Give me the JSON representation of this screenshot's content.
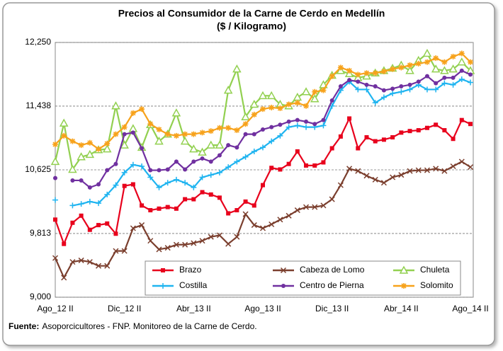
{
  "chart_data": {
    "type": "line",
    "title": "Precios al Consumidor de la Carne de Cerdo en Medellín",
    "subtitle": "($ / Kilogramo)",
    "categories": [
      "Ago_12 II",
      null,
      null,
      null,
      null,
      null,
      null,
      null,
      "Dic_12 II",
      null,
      null,
      null,
      null,
      null,
      null,
      null,
      "Abr_13 II",
      null,
      null,
      null,
      null,
      null,
      null,
      null,
      "Ago_13 II",
      null,
      null,
      null,
      null,
      null,
      null,
      null,
      "Dic_13 II",
      null,
      null,
      null,
      null,
      null,
      null,
      null,
      "Abr_14 II",
      null,
      null,
      null,
      null,
      null,
      null,
      null,
      "Ago_14 II"
    ],
    "ylim": [
      9000,
      12250
    ],
    "yticks": [
      {
        "value": 9000,
        "label": "9,000"
      },
      {
        "value": 9813,
        "label": "9,813"
      },
      {
        "value": 10625,
        "label": "10,625"
      },
      {
        "value": 11438,
        "label": "11,438"
      },
      {
        "value": 12250,
        "label": "12,250"
      }
    ],
    "grid": true,
    "legend": "bottom",
    "series": [
      {
        "name": "Brazo",
        "color": "#e8001c",
        "marker": "square",
        "values": [
          9990,
          9680,
          9950,
          10040,
          9860,
          9920,
          9940,
          9810,
          10420,
          10440,
          10170,
          10110,
          10130,
          10150,
          10130,
          10250,
          10250,
          10340,
          10310,
          10270,
          10070,
          10110,
          10220,
          10170,
          10430,
          10650,
          10630,
          10700,
          10860,
          10680,
          10680,
          10720,
          10900,
          11050,
          11280,
          10900,
          11040,
          10990,
          11010,
          11040,
          11100,
          11120,
          11130,
          11160,
          11200,
          11130,
          11020,
          11260,
          11210
        ]
      },
      {
        "name": "Cabeza de Lomo",
        "color": "#7b3f2e",
        "marker": "x",
        "values": [
          9500,
          9250,
          9450,
          9470,
          9450,
          9400,
          9400,
          9590,
          9590,
          9880,
          9920,
          9720,
          9610,
          9630,
          9670,
          9670,
          9690,
          9720,
          9770,
          9790,
          9680,
          9770,
          10060,
          9920,
          9880,
          9930,
          9990,
          10040,
          10110,
          10150,
          10150,
          10170,
          10250,
          10430,
          10640,
          10610,
          10550,
          10500,
          10460,
          10530,
          10560,
          10610,
          10620,
          10620,
          10640,
          10610,
          10670,
          10730,
          10660
        ]
      },
      {
        "name": "Chuleta",
        "color": "#92d050",
        "marker": "triangle",
        "values": [
          10730,
          11220,
          10630,
          10790,
          10820,
          10880,
          10890,
          11440,
          10940,
          11150,
          10910,
          11200,
          10990,
          11080,
          11350,
          10990,
          10890,
          10850,
          10940,
          10940,
          11640,
          11910,
          11300,
          11460,
          11570,
          11570,
          11460,
          11440,
          11550,
          11620,
          11530,
          11710,
          11830,
          11890,
          11850,
          11800,
          11820,
          11860,
          11890,
          11920,
          11960,
          11890,
          12020,
          12110,
          11910,
          11890,
          11910,
          12000,
          11890
        ]
      },
      {
        "name": "Costilla",
        "color": "#1fb4f0",
        "marker": "plus",
        "values": [
          10240,
          null,
          10170,
          10190,
          10220,
          10200,
          10310,
          10430,
          10590,
          10690,
          10670,
          10530,
          10400,
          10460,
          10500,
          10460,
          10400,
          10530,
          10560,
          10590,
          10660,
          10730,
          10790,
          10860,
          10910,
          10990,
          11060,
          11170,
          11190,
          11170,
          11170,
          11190,
          11440,
          11640,
          11750,
          11650,
          11650,
          11480,
          11550,
          11600,
          11620,
          11650,
          11710,
          11650,
          11650,
          11730,
          11710,
          11780,
          11740
        ]
      },
      {
        "name": "Centro de Pierna",
        "color": "#7030a0",
        "marker": "circle",
        "values": [
          10520,
          null,
          10490,
          10490,
          10400,
          10440,
          10620,
          10700,
          11080,
          11100,
          10900,
          10620,
          10620,
          10630,
          10730,
          10630,
          10730,
          10770,
          10730,
          10810,
          10940,
          10910,
          11080,
          11080,
          11140,
          11170,
          11200,
          11240,
          11260,
          11240,
          11210,
          11260,
          11510,
          11690,
          11770,
          11750,
          11710,
          11690,
          11640,
          11660,
          11690,
          11710,
          11750,
          11820,
          11730,
          11800,
          11800,
          11890,
          11840
        ]
      },
      {
        "name": "Solomito",
        "color": "#f7a21b",
        "marker": "star",
        "values": [
          10950,
          11060,
          10990,
          10940,
          10970,
          10890,
          10960,
          11080,
          11170,
          11350,
          11400,
          11210,
          11140,
          11080,
          11060,
          11080,
          11080,
          11100,
          11120,
          11160,
          11160,
          11130,
          11210,
          11330,
          11400,
          11420,
          11410,
          11460,
          11480,
          11440,
          11620,
          11640,
          11820,
          11930,
          11890,
          11840,
          11860,
          11860,
          11880,
          11910,
          11930,
          11960,
          11980,
          12000,
          12050,
          12000,
          12070,
          12110,
          12000
        ]
      }
    ],
    "source_label": "Fuente:",
    "source_text": "Asoporcicultores - FNP. Monitoreo de la Carne de Cerdo."
  }
}
